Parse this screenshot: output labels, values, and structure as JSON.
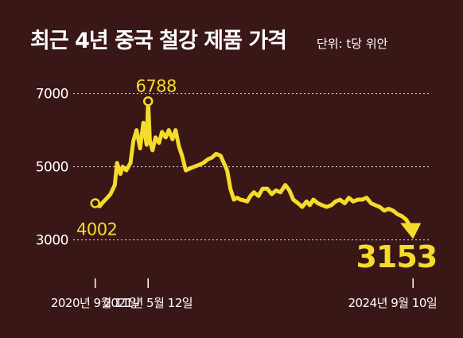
{
  "header": {
    "title": "최근 4년 중국 철강 제품 가격",
    "unit": "단위: t당 위안"
  },
  "colors": {
    "background": "#3a1717",
    "series": "#f5dc2a",
    "text": "#ffffff"
  },
  "chart_data": {
    "type": "line",
    "title": "최근 4년 중국 철강 제품 가격",
    "ylabel": "단위: t당 위안",
    "ylim": [
      2600,
      7600
    ],
    "yticks": [
      3000,
      5000,
      7000
    ],
    "grid": true,
    "x_tick_labels": [
      {
        "label": "2020년 9월 11일",
        "x": "2020-09-11"
      },
      {
        "label": "2021년 5월 12일",
        "x": "2021-05-12"
      },
      {
        "label": "2024년 9월 10일",
        "x": "2024-09-10"
      }
    ],
    "annotations": [
      {
        "label": "4002",
        "x": "2020-09-11",
        "y": 4002
      },
      {
        "label": "6788",
        "x": "2021-05-12",
        "y": 6788
      },
      {
        "label": "3153",
        "x": "2024-09-10",
        "y": 3153
      }
    ],
    "series": [
      {
        "x": [
          "2020-09-11",
          "2020-10-01",
          "2020-10-20",
          "2020-11-05",
          "2020-11-20",
          "2020-12-10",
          "2020-12-20",
          "2021-01-05",
          "2021-01-15",
          "2021-02-01",
          "2021-02-20",
          "2021-03-05",
          "2021-03-20",
          "2021-04-05",
          "2021-04-20",
          "2021-05-05",
          "2021-05-12",
          "2021-05-20",
          "2021-06-01",
          "2021-06-15",
          "2021-07-01",
          "2021-07-15",
          "2021-08-01",
          "2021-08-15",
          "2021-09-01",
          "2021-09-15",
          "2021-10-01",
          "2021-10-15",
          "2021-11-01",
          "2021-11-20",
          "2021-12-10",
          "2022-01-01",
          "2022-01-20",
          "2022-02-10",
          "2022-03-01",
          "2022-03-20",
          "2022-04-10",
          "2022-04-25",
          "2022-05-10",
          "2022-05-25",
          "2022-06-10",
          "2022-06-25",
          "2022-07-10",
          "2022-07-25",
          "2022-08-10",
          "2022-08-25",
          "2022-09-10",
          "2022-10-01",
          "2022-10-20",
          "2022-11-10",
          "2022-12-01",
          "2022-12-20",
          "2023-01-10",
          "2023-02-01",
          "2023-02-20",
          "2023-03-10",
          "2023-04-01",
          "2023-04-20",
          "2023-05-10",
          "2023-05-25",
          "2023-06-10",
          "2023-07-01",
          "2023-07-20",
          "2023-08-10",
          "2023-09-01",
          "2023-09-20",
          "2023-10-10",
          "2023-11-01",
          "2023-11-20",
          "2023-12-10",
          "2024-01-01",
          "2024-01-20",
          "2024-02-10",
          "2024-03-01",
          "2024-03-20",
          "2024-04-10",
          "2024-05-01",
          "2024-05-20",
          "2024-06-10",
          "2024-07-01",
          "2024-07-20",
          "2024-08-10",
          "2024-08-25",
          "2024-09-10"
        ],
        "values": [
          4002,
          3920,
          4050,
          4150,
          4250,
          4500,
          5100,
          4800,
          5000,
          4900,
          5100,
          5700,
          6000,
          5500,
          6200,
          5600,
          6788,
          5700,
          5450,
          5800,
          5650,
          5950,
          5800,
          6000,
          5750,
          6000,
          5550,
          5300,
          4900,
          4950,
          5000,
          5050,
          5100,
          5200,
          5250,
          5350,
          5300,
          5100,
          4900,
          4400,
          4100,
          4150,
          4100,
          4080,
          4050,
          4200,
          4300,
          4200,
          4400,
          4400,
          4250,
          4350,
          4300,
          4500,
          4350,
          4100,
          4000,
          3900,
          4050,
          3950,
          4100,
          4000,
          3950,
          3900,
          3950,
          4050,
          4100,
          4000,
          4150,
          4050,
          4100,
          4100,
          4150,
          4000,
          3950,
          3900,
          3800,
          3850,
          3800,
          3700,
          3650,
          3550,
          3400,
          3153
        ]
      }
    ]
  }
}
